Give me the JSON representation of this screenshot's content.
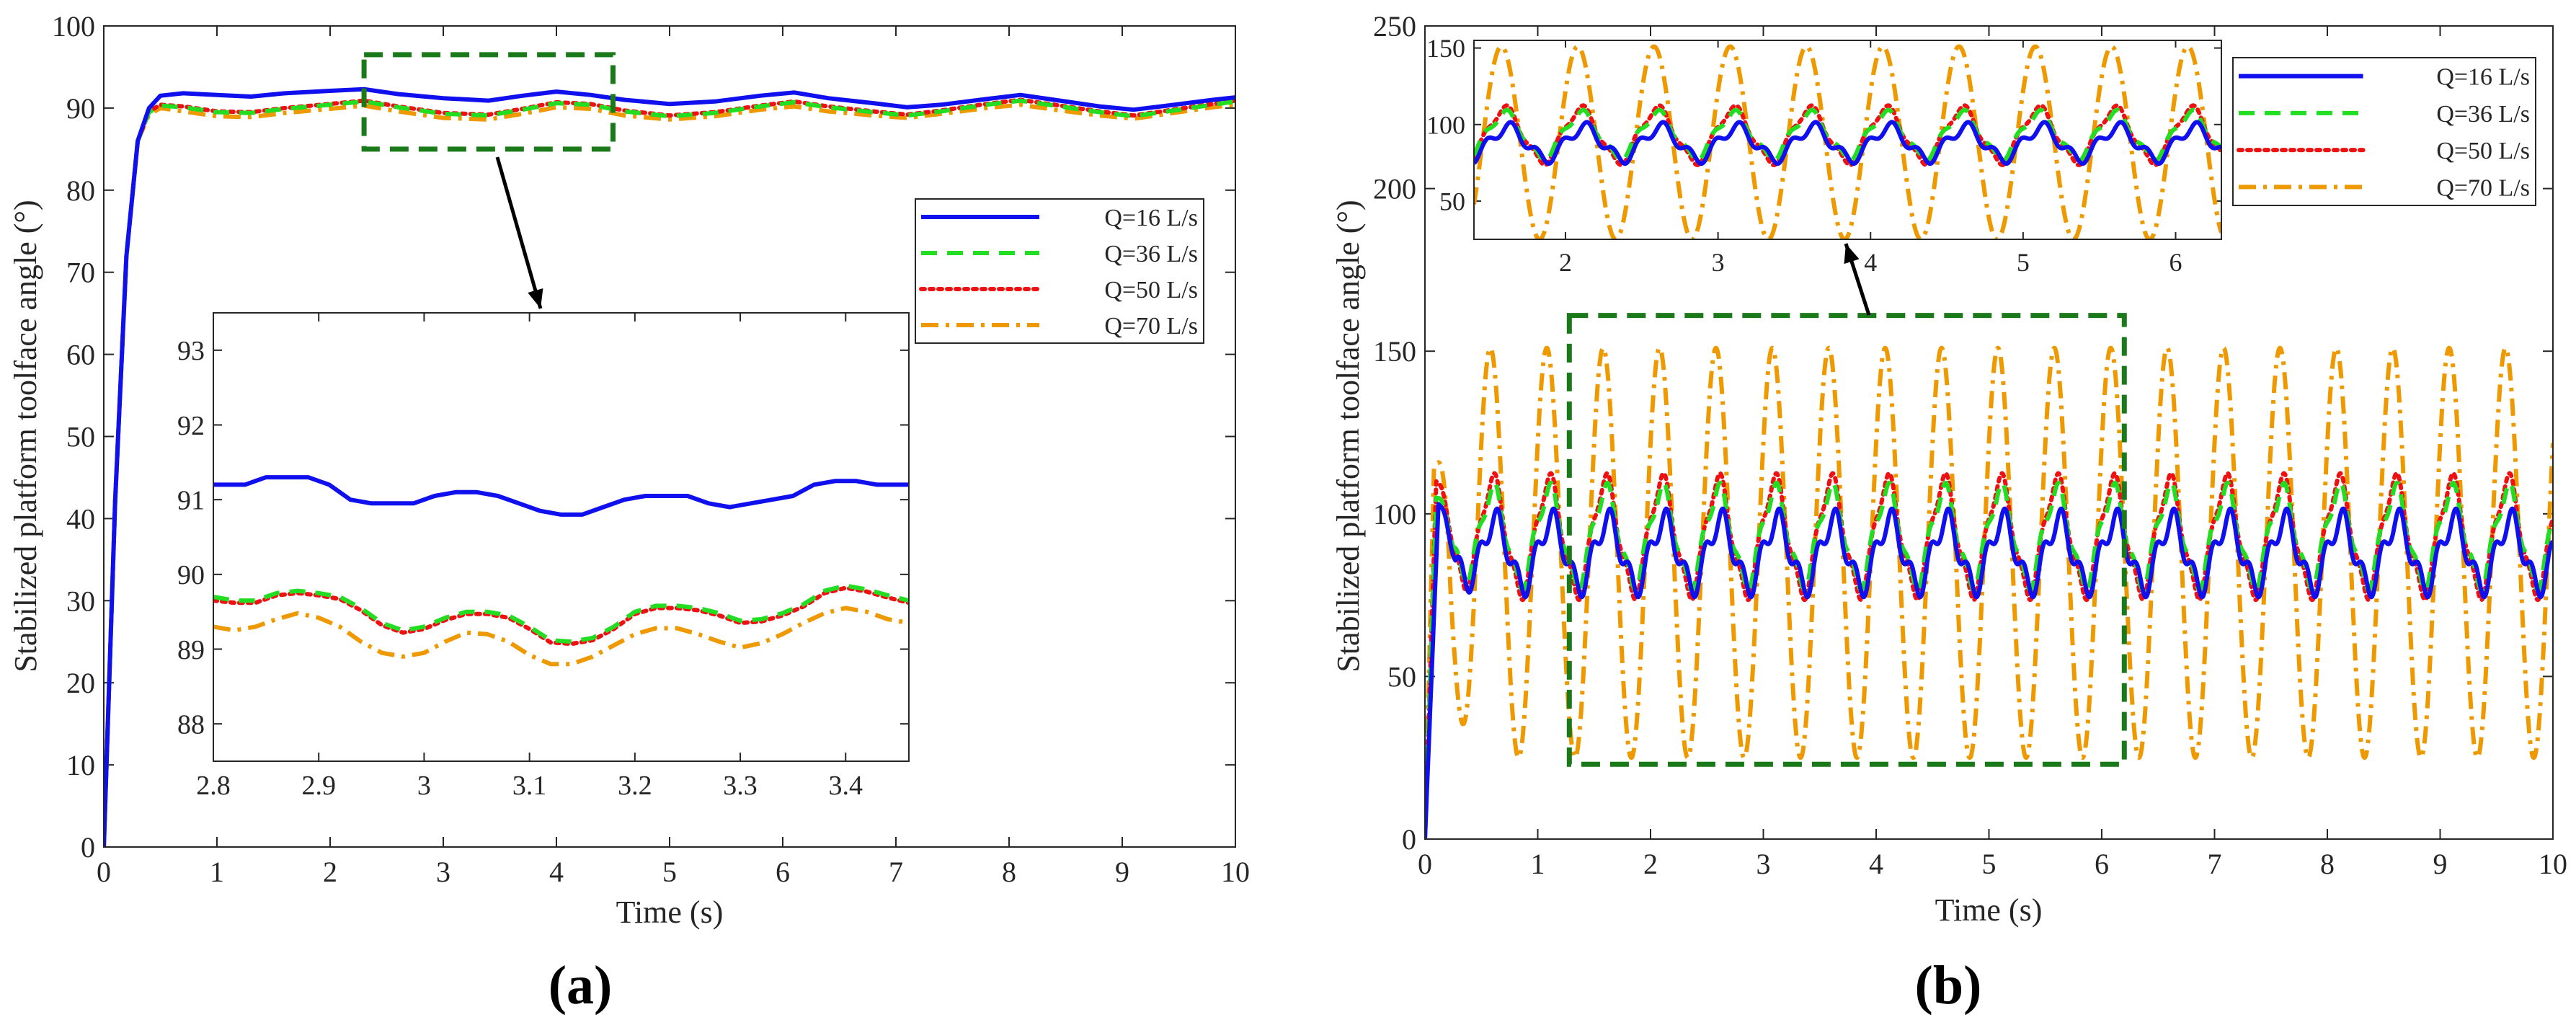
{
  "colors": {
    "q16": "#1010ee",
    "q36": "#22dd22",
    "q50": "#ee1111",
    "q70": "#ee9900",
    "zoom_box": "#1a7a1a",
    "arrow": "#000000"
  },
  "chart_data": [
    {
      "panel_label": "(a)",
      "type": "line",
      "title": "",
      "xlabel": "Time (s)",
      "ylabel": "Stabilized platform toolface angle (°)",
      "xlim": [
        0,
        10
      ],
      "ylim": [
        0,
        100
      ],
      "grid": false,
      "legend_position": "right",
      "x_tick_labels": [
        "0",
        "1",
        "2",
        "3",
        "4",
        "5",
        "6",
        "7",
        "8",
        "9",
        "10"
      ],
      "y_tick_labels": [
        "0",
        "10",
        "20",
        "30",
        "40",
        "50",
        "60",
        "70",
        "80",
        "90",
        "100"
      ],
      "series": [
        {
          "name": "Q=16 L/s",
          "color_key": "q16",
          "style": "solid",
          "x": [
            0,
            0.1,
            0.2,
            0.3,
            0.4,
            0.5,
            0.7,
            1.0,
            1.3,
            1.6,
            2.0,
            2.3,
            2.6,
            3.0,
            3.4,
            3.7,
            4.0,
            4.3,
            4.6,
            5.0,
            5.4,
            5.8,
            6.1,
            6.4,
            6.8,
            7.1,
            7.4,
            7.8,
            8.1,
            8.4,
            8.8,
            9.1,
            9.4,
            9.8,
            10
          ],
          "y": [
            0,
            42,
            72,
            86,
            90,
            91.5,
            91.8,
            91.6,
            91.4,
            91.8,
            92.1,
            92.3,
            91.7,
            91.2,
            90.9,
            91.5,
            92.0,
            91.6,
            91.0,
            90.5,
            90.8,
            91.5,
            91.9,
            91.2,
            90.6,
            90.1,
            90.4,
            91.1,
            91.6,
            91.0,
            90.2,
            89.8,
            90.3,
            91.0,
            91.3
          ]
        },
        {
          "name": "Q=36 L/s",
          "color_key": "q36",
          "style": "dashed",
          "x": [
            0,
            0.1,
            0.2,
            0.3,
            0.4,
            0.5,
            0.7,
            1.0,
            1.3,
            1.6,
            2.0,
            2.3,
            2.6,
            3.0,
            3.4,
            3.7,
            4.0,
            4.3,
            4.6,
            5.0,
            5.4,
            5.8,
            6.1,
            6.4,
            6.8,
            7.1,
            7.4,
            7.8,
            8.1,
            8.4,
            8.8,
            9.1,
            9.4,
            9.8,
            10
          ],
          "y": [
            0,
            42,
            72,
            86,
            89.5,
            90.3,
            90.1,
            89.5,
            89.4,
            89.9,
            90.4,
            90.8,
            90.1,
            89.3,
            89.1,
            89.8,
            90.6,
            90.4,
            89.6,
            89.0,
            89.4,
            90.2,
            90.7,
            90.1,
            89.5,
            89.1,
            89.6,
            90.4,
            90.9,
            90.3,
            89.5,
            89.0,
            89.6,
            90.4,
            90.8
          ]
        },
        {
          "name": "Q=50 L/s",
          "color_key": "q50",
          "style": "dotted",
          "x": [
            0,
            0.1,
            0.2,
            0.3,
            0.4,
            0.5,
            0.7,
            1.0,
            1.3,
            1.6,
            2.0,
            2.3,
            2.6,
            3.0,
            3.4,
            3.7,
            4.0,
            4.3,
            4.6,
            5.0,
            5.4,
            5.8,
            6.1,
            6.4,
            6.8,
            7.1,
            7.4,
            7.8,
            8.1,
            8.4,
            8.8,
            9.1,
            9.4,
            9.8,
            10
          ],
          "y": [
            0,
            42,
            72,
            86,
            89.6,
            90.4,
            90.2,
            89.6,
            89.5,
            90.0,
            90.5,
            90.9,
            90.2,
            89.4,
            89.2,
            89.9,
            90.7,
            90.5,
            89.7,
            89.1,
            89.5,
            90.3,
            90.8,
            90.2,
            89.6,
            89.2,
            89.7,
            90.5,
            91.0,
            90.4,
            89.6,
            89.1,
            89.7,
            90.5,
            90.9
          ]
        },
        {
          "name": "Q=70 L/s",
          "color_key": "q70",
          "style": "dashdot",
          "x": [
            0,
            0.1,
            0.2,
            0.3,
            0.4,
            0.5,
            0.7,
            1.0,
            1.3,
            1.6,
            2.0,
            2.3,
            2.6,
            3.0,
            3.4,
            3.7,
            4.0,
            4.3,
            4.6,
            5.0,
            5.4,
            5.8,
            6.1,
            6.4,
            6.8,
            7.1,
            7.4,
            7.8,
            8.1,
            8.4,
            8.8,
            9.1,
            9.4,
            9.8,
            10
          ],
          "y": [
            0,
            42,
            72,
            86,
            89.2,
            90.0,
            89.6,
            89.0,
            88.9,
            89.4,
            89.9,
            90.3,
            89.6,
            88.8,
            88.6,
            89.3,
            90.1,
            89.9,
            89.1,
            88.6,
            89.0,
            89.8,
            90.2,
            89.6,
            89.1,
            88.8,
            89.3,
            90.0,
            90.4,
            89.8,
            89.1,
            88.7,
            89.3,
            90.1,
            90.4
          ]
        }
      ],
      "zoom_region": {
        "x": [
          2.3,
          4.5
        ],
        "y": [
          85,
          96.5
        ]
      },
      "inset": {
        "xlim": [
          2.8,
          3.46
        ],
        "ylim": [
          87.5,
          93.5
        ],
        "x_tick_labels": [
          "2.8",
          "2.9",
          "3",
          "3.1",
          "3.2",
          "3.3",
          "3.4"
        ],
        "y_tick_labels": [
          "88",
          "89",
          "90",
          "91",
          "92",
          "93"
        ],
        "series": [
          {
            "color_key": "q16",
            "style": "solid",
            "x": [
              2.8,
              2.83,
              2.85,
              2.87,
              2.89,
              2.91,
              2.93,
              2.95,
              2.97,
              2.99,
              3.01,
              3.03,
              3.05,
              3.07,
              3.09,
              3.11,
              3.13,
              3.15,
              3.17,
              3.19,
              3.21,
              3.23,
              3.25,
              3.27,
              3.29,
              3.31,
              3.33,
              3.35,
              3.37,
              3.39,
              3.41,
              3.43,
              3.46
            ],
            "y": [
              91.2,
              91.2,
              91.3,
              91.3,
              91.3,
              91.2,
              91.0,
              90.95,
              90.95,
              90.95,
              91.05,
              91.1,
              91.1,
              91.05,
              90.95,
              90.85,
              90.8,
              90.8,
              90.9,
              91.0,
              91.05,
              91.05,
              91.05,
              90.95,
              90.9,
              90.95,
              91.0,
              91.05,
              91.2,
              91.25,
              91.25,
              91.2,
              91.2
            ]
          },
          {
            "color_key": "q36",
            "style": "dashed",
            "x": [
              2.8,
              2.82,
              2.84,
              2.86,
              2.88,
              2.9,
              2.92,
              2.94,
              2.96,
              2.98,
              3.0,
              3.02,
              3.04,
              3.06,
              3.08,
              3.1,
              3.12,
              3.14,
              3.16,
              3.18,
              3.2,
              3.22,
              3.24,
              3.26,
              3.28,
              3.3,
              3.32,
              3.34,
              3.36,
              3.38,
              3.4,
              3.42,
              3.44,
              3.46
            ],
            "y": [
              89.7,
              89.65,
              89.65,
              89.75,
              89.78,
              89.75,
              89.7,
              89.55,
              89.35,
              89.25,
              89.3,
              89.42,
              89.5,
              89.5,
              89.45,
              89.3,
              89.12,
              89.1,
              89.15,
              89.3,
              89.5,
              89.58,
              89.58,
              89.55,
              89.48,
              89.38,
              89.4,
              89.48,
              89.6,
              89.78,
              89.85,
              89.8,
              89.72,
              89.65
            ]
          },
          {
            "color_key": "q50",
            "style": "dotted",
            "x": [
              2.8,
              2.82,
              2.84,
              2.86,
              2.88,
              2.9,
              2.92,
              2.94,
              2.96,
              2.98,
              3.0,
              3.02,
              3.04,
              3.06,
              3.08,
              3.1,
              3.12,
              3.14,
              3.16,
              3.18,
              3.2,
              3.22,
              3.24,
              3.26,
              3.28,
              3.3,
              3.32,
              3.34,
              3.36,
              3.38,
              3.4,
              3.42,
              3.44,
              3.46
            ],
            "y": [
              89.65,
              89.62,
              89.62,
              89.72,
              89.75,
              89.72,
              89.67,
              89.52,
              89.32,
              89.22,
              89.27,
              89.39,
              89.47,
              89.47,
              89.42,
              89.27,
              89.09,
              89.07,
              89.12,
              89.27,
              89.47,
              89.55,
              89.55,
              89.52,
              89.45,
              89.35,
              89.37,
              89.45,
              89.57,
              89.75,
              89.82,
              89.77,
              89.69,
              89.62
            ]
          },
          {
            "color_key": "q70",
            "style": "dashdot",
            "x": [
              2.8,
              2.82,
              2.84,
              2.86,
              2.88,
              2.9,
              2.92,
              2.94,
              2.96,
              2.98,
              3.0,
              3.02,
              3.04,
              3.06,
              3.08,
              3.1,
              3.12,
              3.14,
              3.16,
              3.18,
              3.2,
              3.22,
              3.24,
              3.26,
              3.28,
              3.3,
              3.32,
              3.34,
              3.36,
              3.38,
              3.4,
              3.42,
              3.44,
              3.46
            ],
            "y": [
              89.3,
              89.25,
              89.3,
              89.4,
              89.48,
              89.42,
              89.3,
              89.1,
              88.95,
              88.9,
              88.95,
              89.1,
              89.22,
              89.2,
              89.1,
              88.92,
              88.8,
              88.8,
              88.9,
              89.05,
              89.2,
              89.28,
              89.28,
              89.2,
              89.1,
              89.02,
              89.08,
              89.2,
              89.35,
              89.48,
              89.55,
              89.5,
              89.4,
              89.35
            ]
          }
        ]
      }
    },
    {
      "panel_label": "(b)",
      "type": "line",
      "title": "",
      "xlabel": "Time (s)",
      "ylabel": "Stabilized platform toolface angle (°)",
      "xlim": [
        0,
        10
      ],
      "ylim": [
        0,
        250
      ],
      "grid": false,
      "legend_position": "top-right",
      "x_tick_labels": [
        "0",
        "1",
        "2",
        "3",
        "4",
        "5",
        "6",
        "7",
        "8",
        "9",
        "10"
      ],
      "y_tick_labels": [
        "0",
        "50",
        "100",
        "150",
        "200",
        "250"
      ],
      "series": [
        {
          "name": "Q=16 L/s",
          "color_key": "q16",
          "style": "solid",
          "model": {
            "kind": "oscillation",
            "offset": 88,
            "amplitude": 10,
            "period": 0.5,
            "harmonic_amp": 4,
            "start_value": 0,
            "peak_value": 103,
            "rise_time": 0.12
          }
        },
        {
          "name": "Q=36 L/s",
          "color_key": "q36",
          "style": "dashed",
          "model": {
            "kind": "oscillation",
            "offset": 93,
            "amplitude": 14,
            "period": 0.5,
            "harmonic_amp": 3,
            "start_value": 0,
            "peak_value": 105,
            "rise_time": 0.1
          }
        },
        {
          "name": "Q=50 L/s",
          "color_key": "q50",
          "style": "dotted",
          "model": {
            "kind": "oscillation",
            "offset": 93,
            "amplitude": 17,
            "period": 0.5,
            "harmonic_amp": 3,
            "start_value": 0,
            "peak_value": 110,
            "rise_time": 0.1
          }
        },
        {
          "name": "Q=70 L/s",
          "color_key": "q70",
          "style": "dashdot",
          "model": {
            "kind": "oscillation",
            "offset": 88,
            "amplitude": 63,
            "period": 0.5,
            "harmonic_amp": 0,
            "start_value": 0,
            "peak_value": 114,
            "rise_time": 0.08
          }
        }
      ],
      "zoom_region": {
        "x": [
          1.28,
          6.2
        ],
        "y": [
          23,
          161
        ]
      },
      "inset": {
        "xlim": [
          1.4,
          6.3
        ],
        "ylim": [
          25,
          155
        ],
        "x_tick_labels": [
          "2",
          "3",
          "4",
          "5",
          "6"
        ],
        "y_tick_labels": [
          "50",
          "100",
          "150"
        ]
      }
    }
  ]
}
